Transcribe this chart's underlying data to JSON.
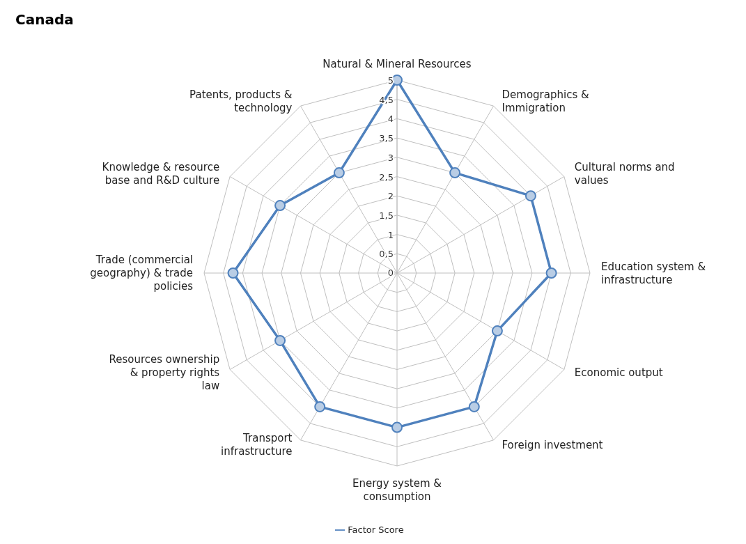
{
  "chart_data": {
    "type": "radar",
    "title": "Canada",
    "categories": [
      "Natural & Mineral Resources",
      "Demographics & Immigration",
      "Cultural norms and values",
      "Education system & infrastructure",
      "Economic output",
      "Foreign investment",
      "Energy system & consumption",
      "Transport infrastructure",
      "Resources ownership & property rights law",
      "Trade (commercial geography) & trade policies",
      "Knowledge & resource base and R&D culture",
      "Patents, products & technology"
    ],
    "series": [
      {
        "name": "Factor Score",
        "color": "#4f81bd",
        "values": [
          5,
          3,
          4,
          4,
          3,
          4,
          4,
          4,
          3.5,
          4.25,
          3.5,
          3
        ]
      }
    ],
    "ylim": [
      0,
      5
    ],
    "yticks": [
      0,
      {
        "value": 0.5,
        "label": "0,5"
      },
      1,
      {
        "value": 1.5,
        "label": "1,5"
      },
      2,
      {
        "value": 2.5,
        "label": "2,5"
      },
      3,
      {
        "value": 3.5,
        "label": "3,5"
      },
      4,
      {
        "value": 4.5,
        "label": "4,5"
      },
      5
    ],
    "grid": true,
    "legend": "bottom",
    "marker": "circle"
  }
}
